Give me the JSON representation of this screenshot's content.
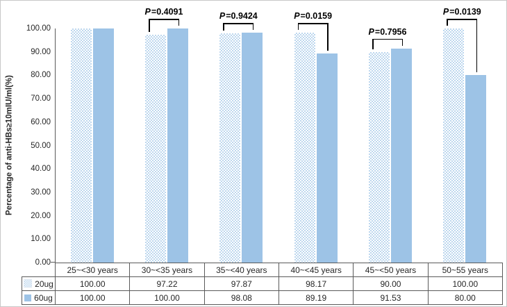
{
  "chart_data": {
    "type": "bar",
    "title": "",
    "xlabel": "",
    "ylabel": "Percentage of anti-HBs≥10mIU/ml(%)",
    "ylim": [
      0,
      100
    ],
    "grid": false,
    "legend_position": "table-left-column",
    "ytick_labels": [
      "100.00",
      "90.00",
      "80.00",
      "70.00",
      "60.00",
      "50.00",
      "40.00",
      "30.00",
      "20.00",
      "10.00",
      "0.00"
    ],
    "categories": [
      "25~<30 years",
      "30~<35 years",
      "35~<40 years",
      "40~<45 years",
      "45~<50 years",
      "50~55 years"
    ],
    "series": [
      {
        "name": "20ug",
        "pattern": "dotted",
        "color": "#BDD7EE",
        "values": [
          "100.00",
          "97.22",
          "97.87",
          "98.17",
          "90.00",
          "100.00"
        ]
      },
      {
        "name": "60ug",
        "pattern": "solid",
        "color": "#9DC3E6",
        "values": [
          "100.00",
          "100.00",
          "98.08",
          "89.19",
          "91.53",
          "80.00"
        ]
      }
    ],
    "p_annotations": [
      "",
      "P=0.4091",
      "P=0.9424",
      "P=0.0159",
      "P=0.7956",
      "P=0.0139"
    ],
    "annotation_color": "#000000",
    "axis_color": "#595959"
  }
}
